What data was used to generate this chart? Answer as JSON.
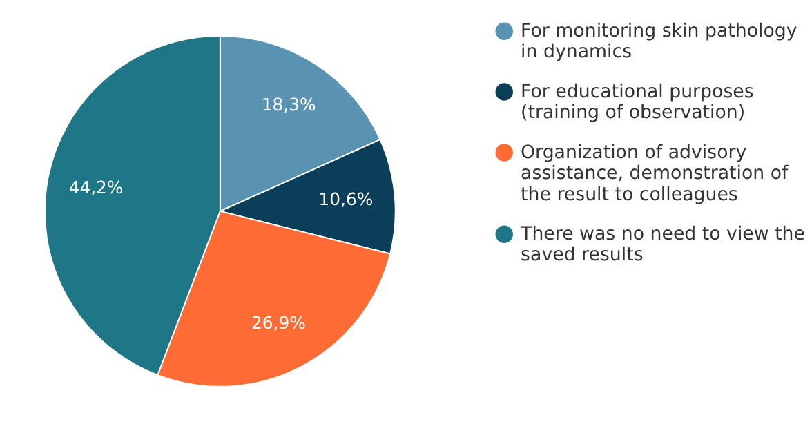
{
  "chart_data": {
    "type": "pie",
    "categories": [
      "For monitoring skin pathology in dynamics",
      "For educational purposes (training of observation)",
      "Organization of advisory assistance, demonstration of the result to colleagues",
      "There was no need to view the saved results"
    ],
    "values": [
      18.3,
      10.6,
      26.9,
      44.2
    ],
    "colors": [
      "#5a93b1",
      "#0b3e58",
      "#ff6b35",
      "#1f7686"
    ],
    "value_labels": [
      "18,3%",
      "10,6%",
      "26,9%",
      "44,2%"
    ],
    "legend": "right"
  }
}
